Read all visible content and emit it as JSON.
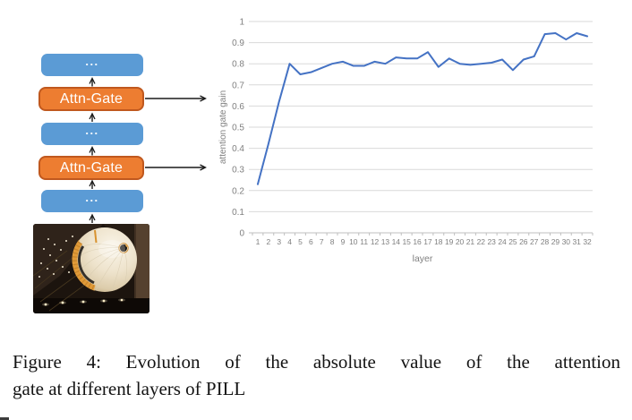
{
  "figure": {
    "caption_line1": "Figure 4: Evolution of the absolute value of the attention",
    "caption_line2": "gate at different layers of PILL"
  },
  "diagram": {
    "blocks": [
      {
        "id": "transformer-block-top",
        "type": "blue",
        "label": "..."
      },
      {
        "id": "attn-gate-upper",
        "type": "orange",
        "label": "Attn-Gate"
      },
      {
        "id": "transformer-block-middle",
        "type": "blue",
        "label": "..."
      },
      {
        "id": "attn-gate-lower",
        "type": "orange",
        "label": "Attn-Gate"
      },
      {
        "id": "transformer-block-bottom",
        "type": "blue",
        "label": "..."
      }
    ],
    "photo_alt": "large cream and orange spherical balloon suspended inside a dark hangar",
    "colors": {
      "blue": "#5B9BD5",
      "orange": "#ED7D31",
      "orange_border": "#C0581E",
      "arrow": "#1a1a1a"
    }
  },
  "chart_data": {
    "type": "line",
    "title": "",
    "xlabel": "layer",
    "ylabel": "attention gate gain",
    "x": [
      1,
      2,
      3,
      4,
      5,
      6,
      7,
      8,
      9,
      10,
      11,
      12,
      13,
      14,
      15,
      16,
      17,
      18,
      19,
      20,
      21,
      22,
      23,
      24,
      25,
      26,
      27,
      28,
      29,
      30,
      31,
      32
    ],
    "values": [
      0.23,
      0.42,
      0.62,
      0.8,
      0.75,
      0.76,
      0.78,
      0.8,
      0.81,
      0.79,
      0.79,
      0.81,
      0.8,
      0.83,
      0.825,
      0.825,
      0.855,
      0.785,
      0.825,
      0.8,
      0.795,
      0.8,
      0.805,
      0.82,
      0.77,
      0.82,
      0.835,
      0.94,
      0.945,
      0.915,
      0.945,
      0.93
    ],
    "ylim": [
      0,
      1
    ],
    "ytick_labels": [
      "0",
      "0.1",
      "0.2",
      "0.3",
      "0.4",
      "0.5",
      "0.6",
      "0.7",
      "0.8",
      "0.9",
      "1"
    ],
    "grid": true,
    "legend": "none",
    "line_color": "#4472C4",
    "grid_color": "#D9D9D9",
    "axis_color": "#BFBFBF",
    "tick_text_color": "#7F7F7F"
  }
}
